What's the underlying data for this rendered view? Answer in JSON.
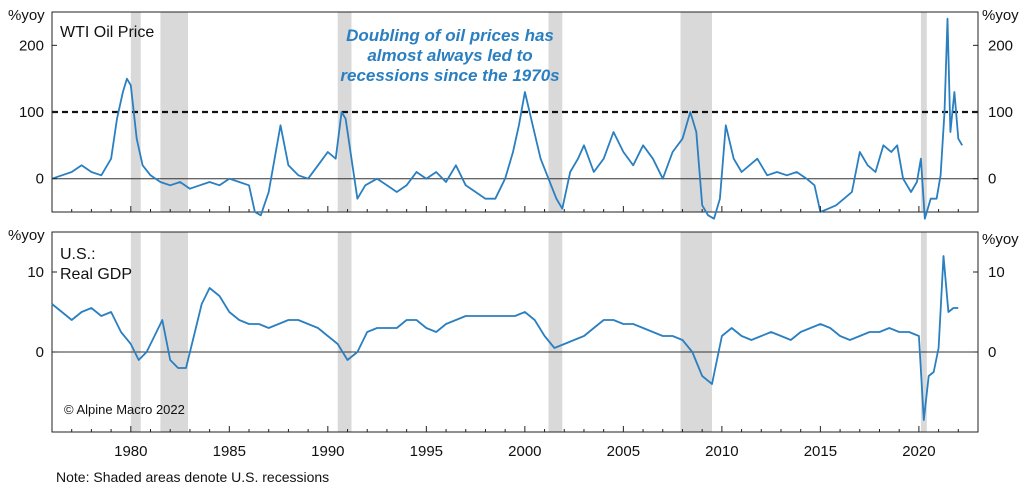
{
  "chart_data": [
    {
      "type": "line",
      "title": "WTI Oil Price",
      "unit_label": "%yoy",
      "ylim": [
        -50,
        250
      ],
      "yticks": [
        0,
        100,
        200
      ],
      "x_range": [
        1976,
        2023
      ],
      "xticks": [
        1980,
        1985,
        1990,
        1995,
        2000,
        2005,
        2010,
        2015,
        2020
      ],
      "reference_line": {
        "y": 100,
        "style": "dashed"
      },
      "annotation": [
        "Doubling of oil prices has",
        "almost always led to",
        "recessions since the 1970s"
      ],
      "color": "#2a7fc1",
      "series": [
        {
          "x": [
            1976.0,
            1976.5,
            1977.0,
            1977.5,
            1978.0,
            1978.5,
            1979.0,
            1979.3,
            1979.6,
            1979.8,
            1980.0,
            1980.3,
            1980.6,
            1981.0,
            1981.5,
            1982.0,
            1982.5,
            1983.0,
            1983.5,
            1984.0,
            1984.5,
            1985.0,
            1985.5,
            1986.0,
            1986.3,
            1986.6,
            1987.0,
            1987.3,
            1987.6,
            1988.0,
            1988.5,
            1989.0,
            1989.5,
            1990.0,
            1990.4,
            1990.7,
            1990.9,
            1991.2,
            1991.5,
            1991.9,
            1992.5,
            1993.0,
            1993.5,
            1994.0,
            1994.5,
            1995.0,
            1995.5,
            1996.0,
            1996.5,
            1997.0,
            1997.5,
            1998.0,
            1998.5,
            1999.0,
            1999.4,
            1999.7,
            2000.0,
            2000.4,
            2000.8,
            2001.2,
            2001.6,
            2001.9,
            2002.3,
            2002.7,
            2003.0,
            2003.5,
            2004.0,
            2004.5,
            2005.0,
            2005.5,
            2006.0,
            2006.5,
            2007.0,
            2007.5,
            2008.0,
            2008.4,
            2008.7,
            2009.0,
            2009.3,
            2009.6,
            2009.9,
            2010.2,
            2010.6,
            2011.0,
            2011.4,
            2011.8,
            2012.3,
            2012.8,
            2013.3,
            2013.8,
            2014.3,
            2014.7,
            2015.0,
            2015.4,
            2015.8,
            2016.2,
            2016.6,
            2017.0,
            2017.4,
            2017.8,
            2018.2,
            2018.6,
            2018.9,
            2019.2,
            2019.6,
            2019.9,
            2020.1,
            2020.3,
            2020.6,
            2020.9,
            2021.1,
            2021.3,
            2021.45,
            2021.6,
            2021.8,
            2022.0,
            2022.2
          ],
          "y": [
            0,
            5,
            10,
            20,
            10,
            5,
            30,
            90,
            130,
            150,
            140,
            60,
            20,
            5,
            -5,
            -10,
            -5,
            -15,
            -10,
            -5,
            -10,
            0,
            -5,
            -10,
            -50,
            -55,
            -20,
            30,
            80,
            20,
            5,
            0,
            20,
            40,
            30,
            100,
            90,
            30,
            -30,
            -10,
            0,
            -10,
            -20,
            -10,
            10,
            0,
            10,
            -5,
            20,
            -10,
            -20,
            -30,
            -30,
            0,
            40,
            80,
            130,
            80,
            30,
            0,
            -30,
            -45,
            10,
            30,
            50,
            10,
            30,
            70,
            40,
            20,
            50,
            30,
            0,
            40,
            60,
            100,
            70,
            -40,
            -55,
            -60,
            -30,
            80,
            30,
            10,
            20,
            30,
            5,
            10,
            5,
            10,
            0,
            -10,
            -50,
            -45,
            -40,
            -30,
            -20,
            40,
            20,
            10,
            50,
            40,
            50,
            0,
            -20,
            -5,
            30,
            -60,
            -30,
            -30,
            5,
            100,
            240,
            70,
            130,
            60,
            50
          ]
        }
      ]
    },
    {
      "type": "line",
      "title": "U.S.: Real GDP",
      "title_lines": [
        "U.S.:",
        "Real GDP"
      ],
      "unit_label": "%yoy",
      "ylim": [
        -10,
        15
      ],
      "yticks": [
        0,
        10
      ],
      "x_range": [
        1976,
        2023
      ],
      "xticks": [
        1980,
        1985,
        1990,
        1995,
        2000,
        2005,
        2010,
        2015,
        2020
      ],
      "color": "#2a7fc1",
      "series": [
        {
          "x": [
            1976.0,
            1976.5,
            1977.0,
            1977.5,
            1978.0,
            1978.5,
            1979.0,
            1979.5,
            1980.0,
            1980.4,
            1980.8,
            1981.2,
            1981.6,
            1982.0,
            1982.4,
            1982.8,
            1983.2,
            1983.6,
            1984.0,
            1984.5,
            1985.0,
            1985.5,
            1986.0,
            1986.5,
            1987.0,
            1987.5,
            1988.0,
            1988.5,
            1989.0,
            1989.5,
            1990.0,
            1990.5,
            1991.0,
            1991.5,
            1992.0,
            1992.5,
            1993.0,
            1993.5,
            1994.0,
            1994.5,
            1995.0,
            1995.5,
            1996.0,
            1996.5,
            1997.0,
            1997.5,
            1998.0,
            1998.5,
            1999.0,
            1999.5,
            2000.0,
            2000.5,
            2001.0,
            2001.5,
            2002.0,
            2002.5,
            2003.0,
            2003.5,
            2004.0,
            2004.5,
            2005.0,
            2005.5,
            2006.0,
            2006.5,
            2007.0,
            2007.5,
            2008.0,
            2008.5,
            2009.0,
            2009.5,
            2010.0,
            2010.5,
            2011.0,
            2011.5,
            2012.0,
            2012.5,
            2013.0,
            2013.5,
            2014.0,
            2014.5,
            2015.0,
            2015.5,
            2016.0,
            2016.5,
            2017.0,
            2017.5,
            2018.0,
            2018.5,
            2019.0,
            2019.5,
            2020.0,
            2020.25,
            2020.5,
            2020.75,
            2021.0,
            2021.25,
            2021.5,
            2021.75,
            2022.0
          ],
          "y": [
            6,
            5,
            4,
            5,
            5.5,
            4.5,
            5,
            2.5,
            1,
            -1,
            0,
            2,
            4,
            -1,
            -2,
            -2,
            2,
            6,
            8,
            7,
            5,
            4,
            3.5,
            3.5,
            3,
            3.5,
            4,
            4,
            3.5,
            3,
            2,
            1,
            -1,
            0,
            2.5,
            3,
            3,
            3,
            4,
            4,
            3,
            2.5,
            3.5,
            4,
            4.5,
            4.5,
            4.5,
            4.5,
            4.5,
            4.5,
            5,
            4,
            2,
            0.5,
            1,
            1.5,
            2,
            3,
            4,
            4,
            3.5,
            3.5,
            3,
            2.5,
            2,
            2,
            1.5,
            0,
            -3,
            -4,
            2,
            3,
            2,
            1.5,
            2,
            2.5,
            2,
            1.5,
            2.5,
            3,
            3.5,
            3,
            2,
            1.5,
            2,
            2.5,
            2.5,
            3,
            2.5,
            2.5,
            2,
            -8.5,
            -3,
            -2.5,
            0.5,
            12,
            5,
            5.5,
            5.5
          ]
        }
      ]
    }
  ],
  "recessions": [
    [
      1980.0,
      1980.5
    ],
    [
      1981.5,
      1982.9
    ],
    [
      1990.5,
      1991.2
    ],
    [
      2001.2,
      2001.9
    ],
    [
      2007.9,
      2009.5
    ],
    [
      2020.1,
      2020.4
    ]
  ],
  "copyright": "© Alpine Macro 2022",
  "footnote": "Note: Shaded areas denote U.S. recessions"
}
